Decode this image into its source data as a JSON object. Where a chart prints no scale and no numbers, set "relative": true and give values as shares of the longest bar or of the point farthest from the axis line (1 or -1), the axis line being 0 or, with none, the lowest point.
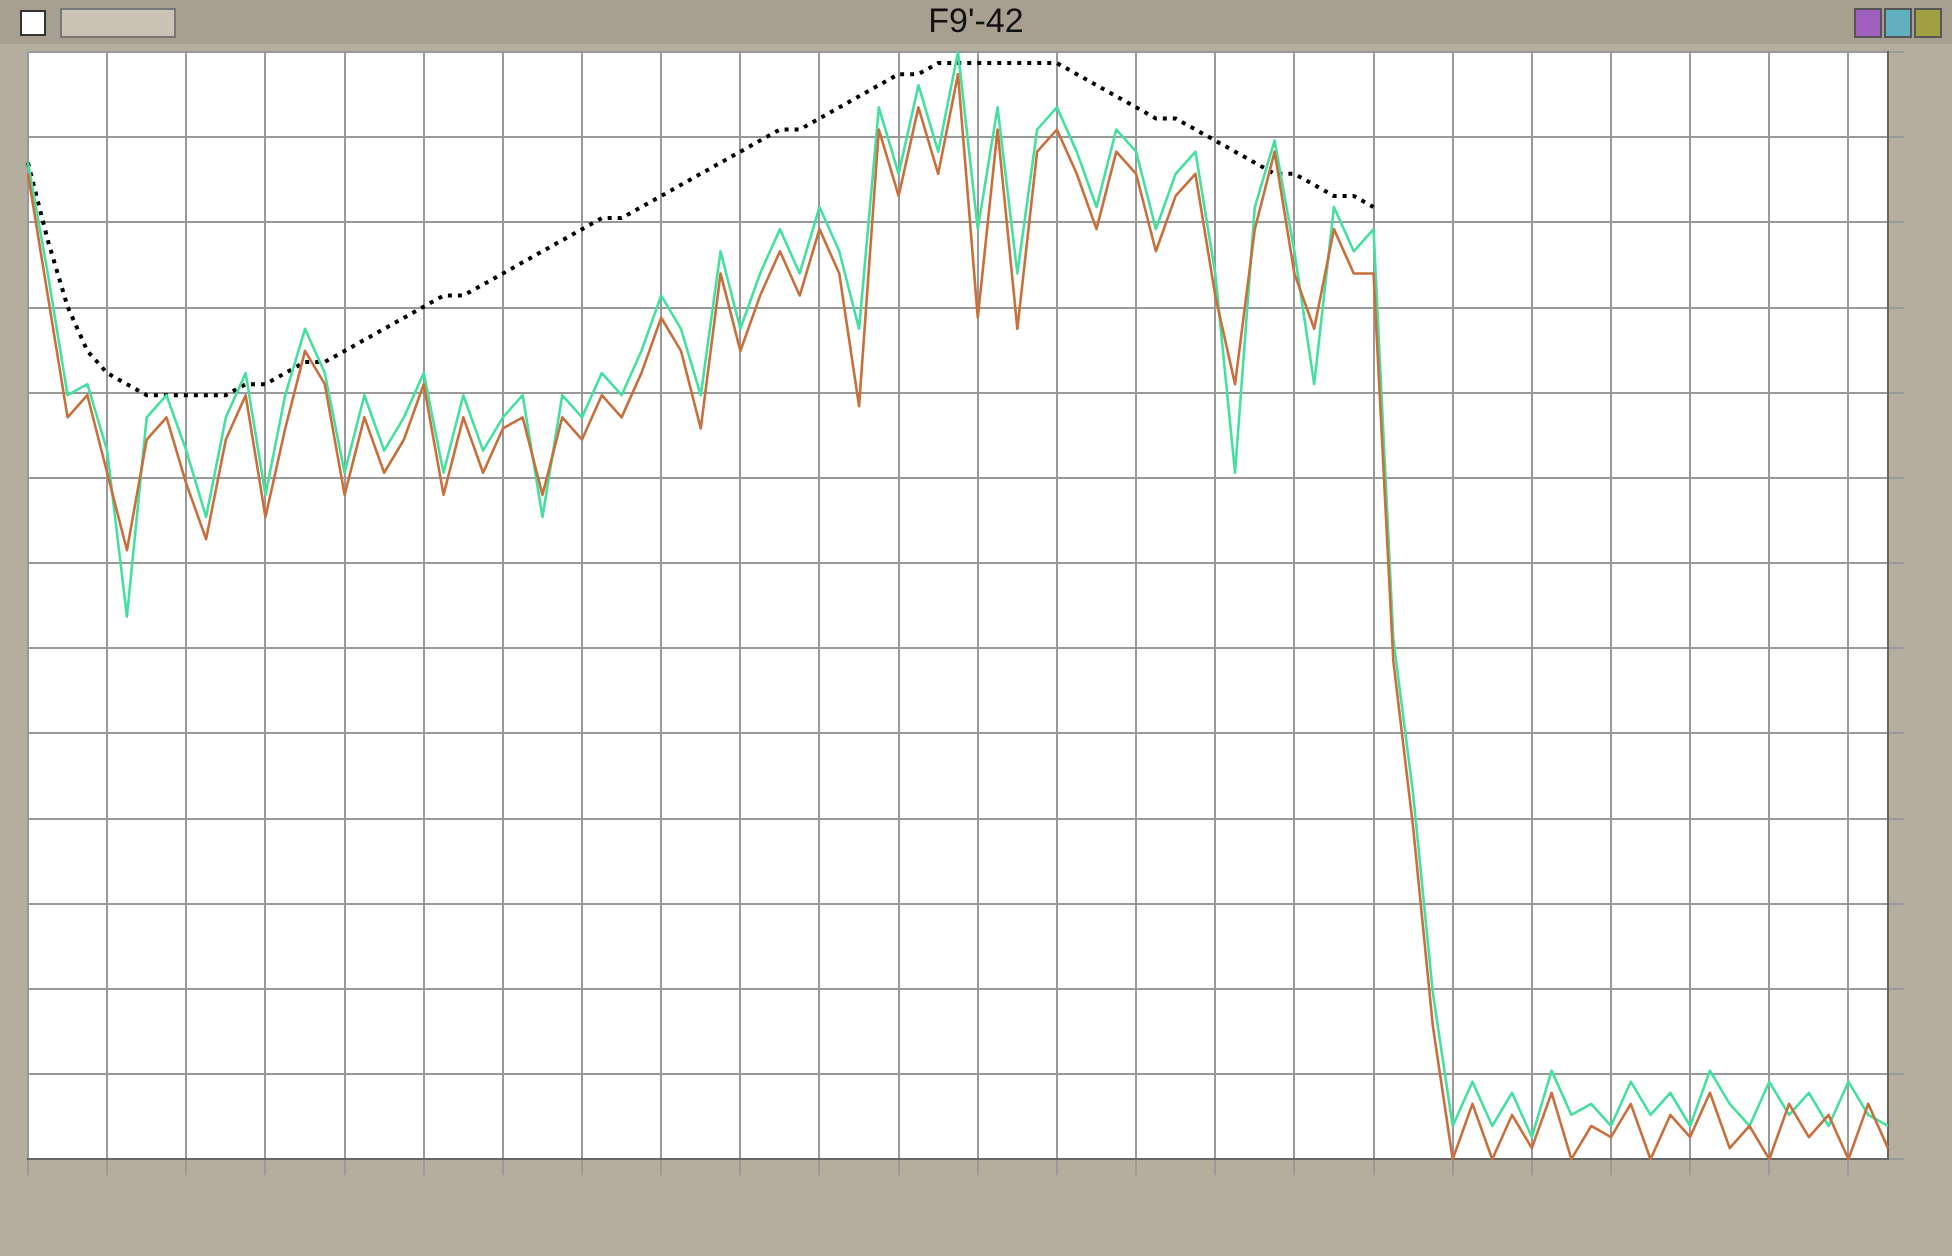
{
  "chart_data": {
    "type": "line",
    "title": "F9'-42",
    "relative": true,
    "grid": true,
    "legend": false,
    "marker": "none",
    "categories": [
      null,
      null,
      null,
      null,
      null,
      null,
      null,
      null,
      null,
      null,
      null,
      null,
      null,
      null,
      null,
      null,
      null,
      null,
      null,
      null,
      null,
      null,
      null,
      null,
      null,
      null,
      null,
      null,
      null,
      null,
      null,
      null,
      null,
      null,
      null,
      null,
      null,
      null,
      null,
      null,
      null,
      null,
      null,
      null,
      null,
      null,
      null,
      null,
      null,
      null,
      null,
      null,
      null,
      null,
      null,
      null,
      null,
      null,
      null,
      null,
      null,
      null,
      null,
      null,
      null,
      null,
      null,
      null,
      null,
      null,
      null,
      null,
      null,
      null,
      null,
      null,
      null,
      null,
      null,
      null,
      null,
      null,
      null,
      null,
      null,
      null,
      null,
      null,
      null,
      null,
      null,
      null,
      null,
      null,
      null
    ],
    "series": [
      {
        "color": "#c8703c",
        "line_style": "solid",
        "values": [
          0.89,
          0.78,
          0.67,
          0.69,
          0.62,
          0.55,
          0.65,
          0.67,
          0.61,
          0.56,
          0.65,
          0.69,
          0.58,
          0.66,
          0.73,
          0.7,
          0.6,
          0.67,
          0.62,
          0.65,
          0.7,
          0.6,
          0.67,
          0.62,
          0.66,
          0.67,
          0.6,
          0.67,
          0.65,
          0.69,
          0.67,
          0.71,
          0.76,
          0.73,
          0.66,
          0.8,
          0.73,
          0.78,
          0.82,
          0.78,
          0.84,
          0.8,
          0.68,
          0.93,
          0.87,
          0.95,
          0.89,
          0.98,
          0.76,
          0.93,
          0.75,
          0.91,
          0.93,
          0.89,
          0.84,
          0.91,
          0.89,
          0.82,
          0.87,
          0.89,
          0.78,
          0.7,
          0.84,
          0.91,
          0.8,
          0.75,
          0.84,
          0.8,
          0.8,
          0.45,
          0.3,
          0.12,
          0.0,
          0.05,
          0.0,
          0.04,
          0.01,
          0.06,
          0.0,
          0.03,
          0.02,
          0.05,
          0.0,
          0.04,
          0.02,
          0.06,
          0.01,
          0.03,
          0.0,
          0.05,
          0.02,
          0.04,
          0.0,
          0.05,
          0.01
        ]
      },
      {
        "color": "#45e0a0",
        "line_style": "solid",
        "values": [
          0.9,
          0.8,
          0.69,
          0.7,
          0.64,
          0.49,
          0.67,
          0.69,
          0.64,
          0.58,
          0.67,
          0.71,
          0.6,
          0.69,
          0.75,
          0.71,
          0.62,
          0.69,
          0.64,
          0.67,
          0.71,
          0.62,
          0.69,
          0.64,
          0.67,
          0.69,
          0.58,
          0.69,
          0.67,
          0.71,
          0.69,
          0.73,
          0.78,
          0.75,
          0.69,
          0.82,
          0.75,
          0.8,
          0.84,
          0.8,
          0.86,
          0.82,
          0.75,
          0.95,
          0.89,
          0.97,
          0.91,
          1.0,
          0.84,
          0.95,
          0.8,
          0.93,
          0.95,
          0.91,
          0.86,
          0.93,
          0.91,
          0.84,
          0.89,
          0.91,
          0.8,
          0.62,
          0.86,
          0.92,
          0.82,
          0.7,
          0.86,
          0.82,
          0.84,
          0.47,
          0.33,
          0.15,
          0.03,
          0.07,
          0.03,
          0.06,
          0.02,
          0.08,
          0.04,
          0.05,
          0.03,
          0.07,
          0.04,
          0.06,
          0.03,
          0.08,
          0.05,
          0.03,
          0.07,
          0.04,
          0.06,
          0.03,
          0.07,
          0.04,
          0.03
        ]
      },
      {
        "color": "#000000",
        "line_style": "dotted",
        "values": [
          0.9,
          0.83,
          0.77,
          0.73,
          0.71,
          0.7,
          0.69,
          0.69,
          0.69,
          0.69,
          0.69,
          0.7,
          0.7,
          0.71,
          0.72,
          0.72,
          0.73,
          0.74,
          0.75,
          0.76,
          0.77,
          0.78,
          0.78,
          0.79,
          0.8,
          0.81,
          0.82,
          0.83,
          0.84,
          0.85,
          0.85,
          0.86,
          0.87,
          0.88,
          0.89,
          0.9,
          0.91,
          0.92,
          0.93,
          0.93,
          0.94,
          0.95,
          0.96,
          0.97,
          0.98,
          0.98,
          0.99,
          0.99,
          0.99,
          0.99,
          0.99,
          0.99,
          0.99,
          0.98,
          0.97,
          0.96,
          0.95,
          0.94,
          0.94,
          0.93,
          0.92,
          0.91,
          0.9,
          0.89,
          0.89,
          0.88,
          0.87,
          0.87,
          0.86,
          null,
          null,
          null,
          null,
          null,
          null,
          null,
          null,
          null,
          null,
          null,
          null,
          null,
          null,
          null,
          null,
          null,
          null,
          null,
          null,
          null,
          null,
          null,
          null,
          null,
          null
        ]
      }
    ]
  }
}
